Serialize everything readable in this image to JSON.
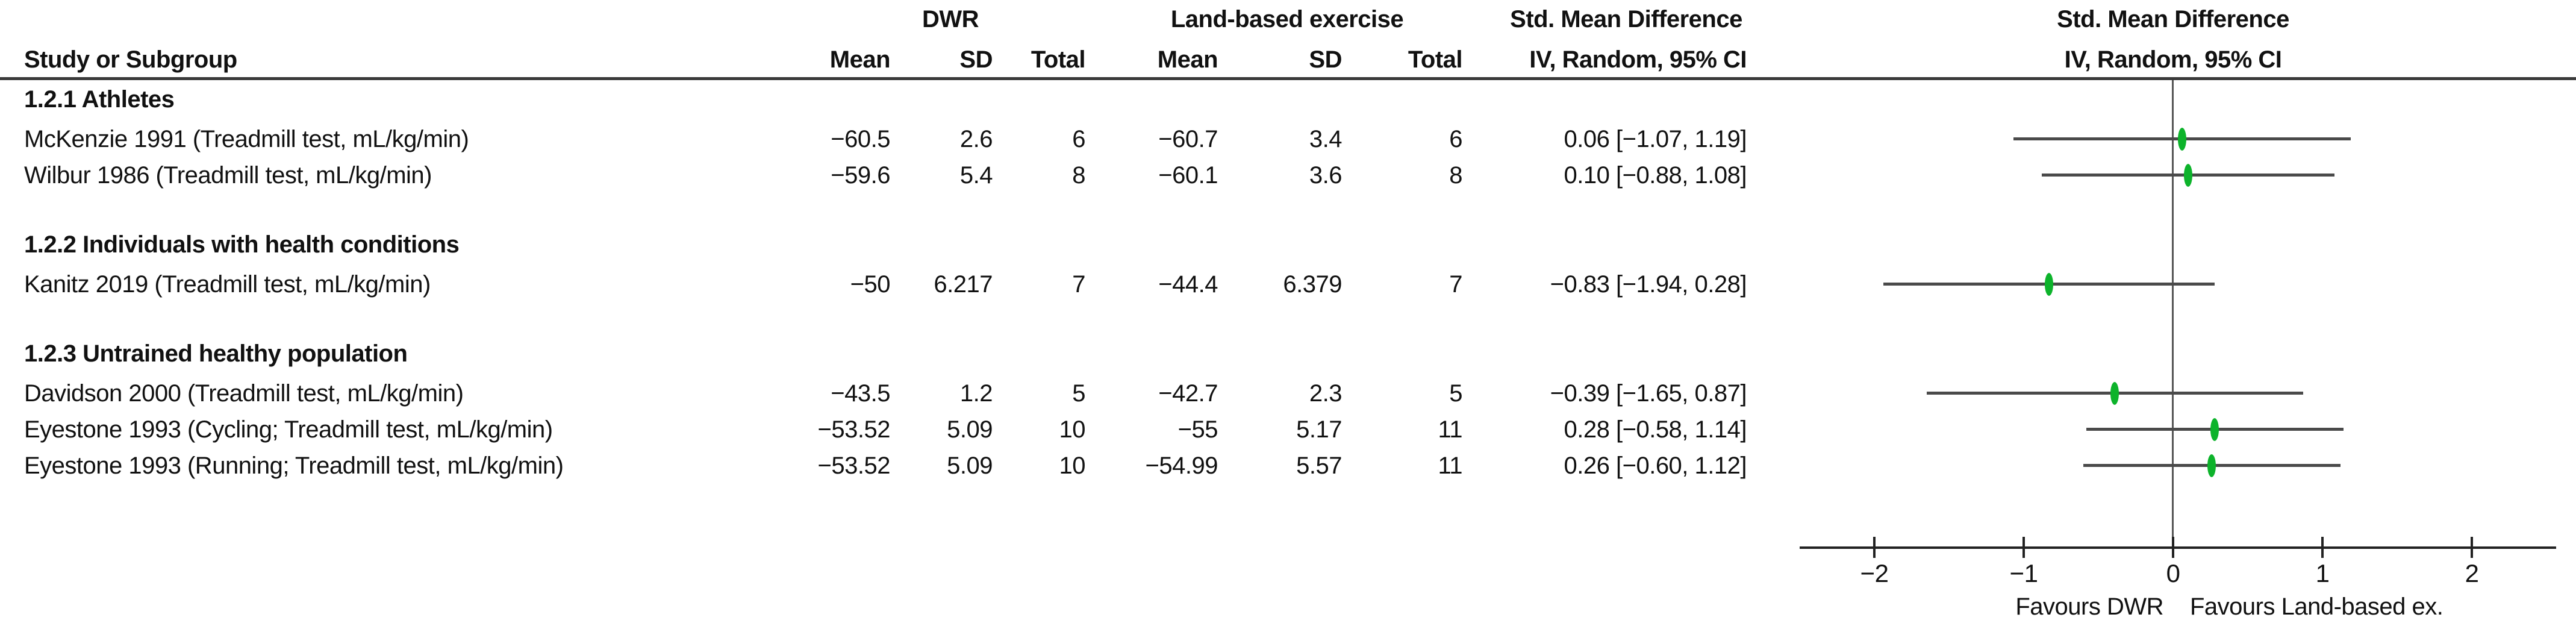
{
  "figure_title": "Forest plot: DWR vs Land-based exercise, Std. Mean Difference",
  "colors": {
    "marker_green": "#0db32b",
    "ci_line_gray": "#4a4a4a",
    "axis_black": "#222222",
    "zero_line_gray": "#555555",
    "text_black": "#111111"
  },
  "table": {
    "study_col_header": "Study or Subgroup",
    "group1_header": "DWR",
    "group2_header": "Land-based exercise",
    "effect_header_line1": "Std. Mean Difference",
    "effect_header_line2": "IV, Random, 95% CI",
    "subcols": [
      "Mean",
      "SD",
      "Total",
      "Mean",
      "SD",
      "Total"
    ]
  },
  "plot": {
    "header_line1": "Std. Mean Difference",
    "header_line2": "IV, Random, 95% CI",
    "favours_left": "Favours DWR",
    "favours_right": "Favours Land-based ex."
  },
  "chart_data": {
    "type": "forest",
    "effect_measure": "Std. Mean Difference",
    "model": "IV, Random, 95% CI",
    "xlim": [
      -2.5,
      2.55
    ],
    "xticks": [
      {
        "value": -2,
        "label": "−2"
      },
      {
        "value": -1,
        "label": "−1"
      },
      {
        "value": 0,
        "label": "0"
      },
      {
        "value": 1,
        "label": "1"
      },
      {
        "value": 2,
        "label": "2"
      }
    ],
    "favours_left": "Favours DWR",
    "favours_right": "Favours Land-based ex.",
    "subgroups": [
      {
        "label": "1.2.1 Athletes",
        "studies": [
          {
            "name": "McKenzie 1991 (Treadmill test, mL/kg/min)",
            "dwr_mean": "−60.5",
            "dwr_sd": "2.6",
            "dwr_total": "6",
            "land_mean": "−60.7",
            "land_sd": "3.4",
            "land_total": "6",
            "smd": 0.06,
            "ci_low": -1.07,
            "ci_high": 1.19,
            "ci_text": "0.06 [−1.07, 1.19]"
          },
          {
            "name": "Wilbur 1986 (Treadmill test, mL/kg/min)",
            "dwr_mean": "−59.6",
            "dwr_sd": "5.4",
            "dwr_total": "8",
            "land_mean": "−60.1",
            "land_sd": "3.6",
            "land_total": "8",
            "smd": 0.1,
            "ci_low": -0.88,
            "ci_high": 1.08,
            "ci_text": "0.10 [−0.88, 1.08]"
          }
        ]
      },
      {
        "label": "1.2.2 Individuals with health conditions",
        "studies": [
          {
            "name": "Kanitz 2019 (Treadmill test, mL/kg/min)",
            "dwr_mean": "−50",
            "dwr_sd": "6.217",
            "dwr_total": "7",
            "land_mean": "−44.4",
            "land_sd": "6.379",
            "land_total": "7",
            "smd": -0.83,
            "ci_low": -1.94,
            "ci_high": 0.28,
            "ci_text": "−0.83 [−1.94, 0.28]"
          }
        ]
      },
      {
        "label": "1.2.3 Untrained healthy population",
        "studies": [
          {
            "name": "Davidson 2000 (Treadmill test, mL/kg/min)",
            "dwr_mean": "−43.5",
            "dwr_sd": "1.2",
            "dwr_total": "5",
            "land_mean": "−42.7",
            "land_sd": "2.3",
            "land_total": "5",
            "smd": -0.39,
            "ci_low": -1.65,
            "ci_high": 0.87,
            "ci_text": "−0.39 [−1.65, 0.87]"
          },
          {
            "name": "Eyestone 1993 (Cycling; Treadmill test, mL/kg/min)",
            "dwr_mean": "−53.52",
            "dwr_sd": "5.09",
            "dwr_total": "10",
            "land_mean": "−55",
            "land_sd": "5.17",
            "land_total": "11",
            "smd": 0.28,
            "ci_low": -0.58,
            "ci_high": 1.14,
            "ci_text": "0.28 [−0.58, 1.14]"
          },
          {
            "name": "Eyestone 1993 (Running; Treadmill test, mL/kg/min)",
            "dwr_mean": "−53.52",
            "dwr_sd": "5.09",
            "dwr_total": "10",
            "land_mean": "−54.99",
            "land_sd": "5.57",
            "land_total": "11",
            "smd": 0.26,
            "ci_low": -0.6,
            "ci_high": 1.12,
            "ci_text": "0.26 [−0.60, 1.12]"
          }
        ]
      }
    ]
  }
}
